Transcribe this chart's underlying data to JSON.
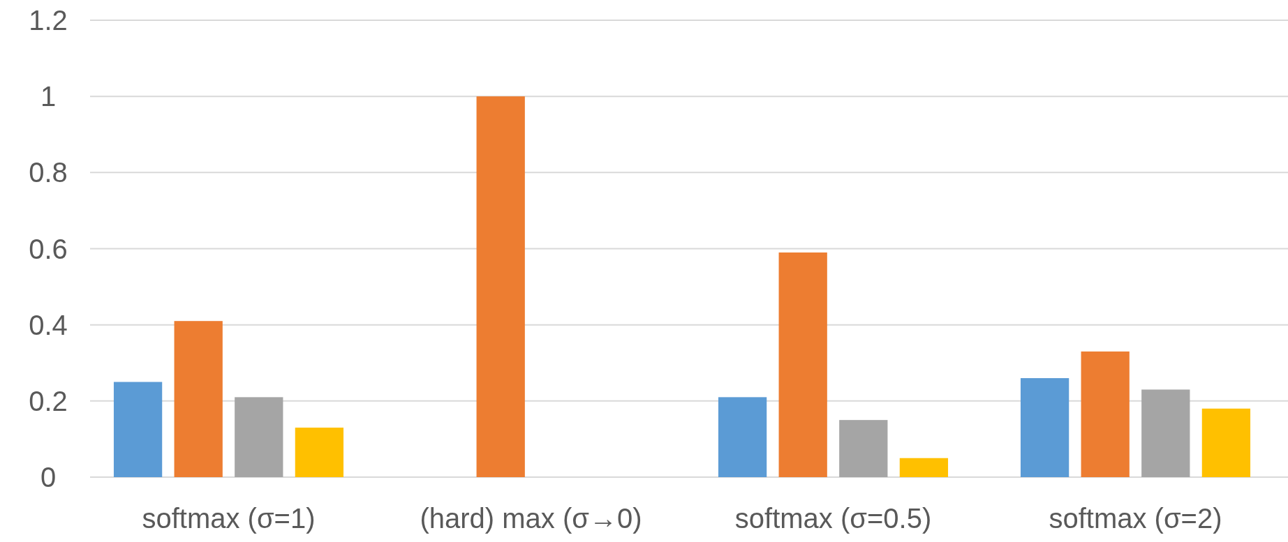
{
  "chart_data": {
    "type": "bar",
    "categories": [
      "softmax (σ=1)",
      "(hard) max (σ→0)",
      "softmax (σ=0.5)",
      "softmax (σ=2)"
    ],
    "series": [
      {
        "color": "#5b9bd5",
        "values": [
          0.25,
          0,
          0.21,
          0.26
        ]
      },
      {
        "color": "#ed7d31",
        "values": [
          0.41,
          1,
          0.59,
          0.33
        ]
      },
      {
        "color": "#a5a5a5",
        "values": [
          0.21,
          0,
          0.15,
          0.23
        ]
      },
      {
        "color": "#ffc000",
        "values": [
          0.13,
          0,
          0.05,
          0.18
        ]
      }
    ],
    "ylim": [
      0,
      1.2
    ],
    "yticks": [
      0,
      0.2,
      0.4,
      0.6,
      0.8,
      1,
      1.2
    ],
    "grid": "y"
  }
}
